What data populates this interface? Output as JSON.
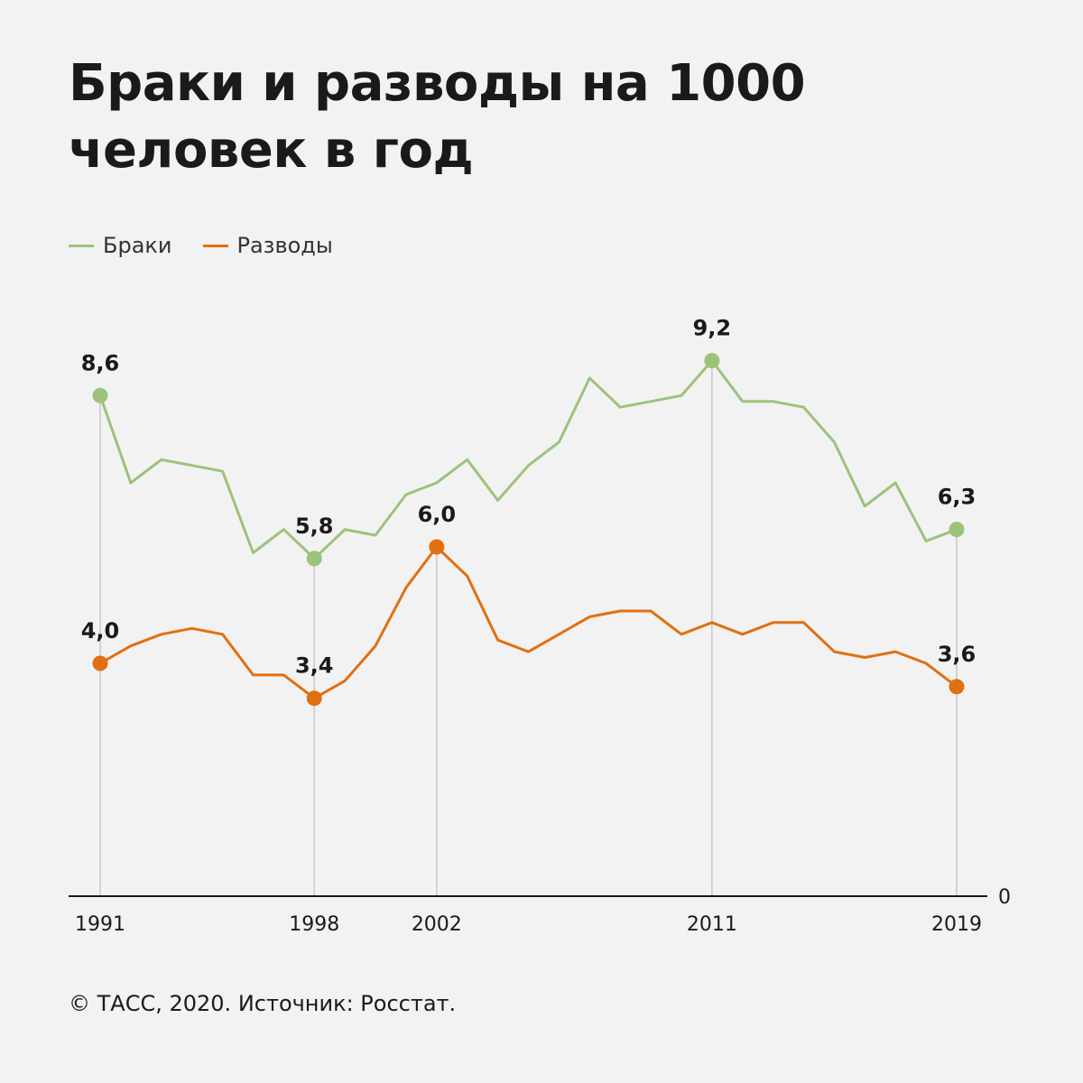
{
  "title": "Браки и разводы на 1000 человек в год",
  "footer": "© ТАСС, 2020. Источник: Росстат.",
  "colors": {
    "marriages": "#9dc27a",
    "divorces": "#e07011",
    "axis": "#1a1a1a",
    "guide": "#c8c8c8",
    "background": "#f2f2f2"
  },
  "chart_data": {
    "type": "line",
    "x": [
      1991,
      1992,
      1993,
      1994,
      1995,
      1996,
      1997,
      1998,
      1999,
      2000,
      2001,
      2002,
      2003,
      2004,
      2005,
      2006,
      2007,
      2008,
      2009,
      2010,
      2011,
      2012,
      2013,
      2014,
      2015,
      2016,
      2017,
      2018,
      2019
    ],
    "series": [
      {
        "name": "Браки",
        "color": "#9dc27a",
        "values": [
          8.6,
          7.1,
          7.5,
          7.4,
          7.3,
          5.9,
          6.3,
          5.8,
          6.3,
          6.2,
          6.9,
          7.1,
          7.5,
          6.8,
          7.4,
          7.8,
          8.9,
          8.4,
          8.5,
          8.6,
          9.2,
          8.5,
          8.5,
          8.4,
          7.8,
          6.7,
          7.1,
          6.1,
          6.3
        ]
      },
      {
        "name": "Разводы",
        "color": "#e07011",
        "values": [
          4.0,
          4.3,
          4.5,
          4.6,
          4.5,
          3.8,
          3.8,
          3.4,
          3.7,
          4.3,
          5.3,
          6.0,
          5.5,
          4.4,
          4.2,
          4.5,
          4.8,
          4.9,
          4.9,
          4.5,
          4.7,
          4.5,
          4.7,
          4.7,
          4.2,
          4.1,
          4.2,
          4.0,
          3.6
        ]
      }
    ],
    "ylim": [
      0,
      10
    ],
    "ytick": "0",
    "xticks": [
      1991,
      1998,
      2002,
      2011,
      2019
    ],
    "annotations": [
      {
        "series": 0,
        "x": 1991,
        "label": "8,6"
      },
      {
        "series": 0,
        "x": 1998,
        "label": "5,8"
      },
      {
        "series": 0,
        "x": 2011,
        "label": "9,2"
      },
      {
        "series": 0,
        "x": 2019,
        "label": "6,3"
      },
      {
        "series": 1,
        "x": 1991,
        "label": "4,0"
      },
      {
        "series": 1,
        "x": 1998,
        "label": "3,4"
      },
      {
        "series": 1,
        "x": 2002,
        "label": "6,0"
      },
      {
        "series": 1,
        "x": 2019,
        "label": "3,6"
      }
    ],
    "grid": false,
    "legend_position": "top-left"
  }
}
